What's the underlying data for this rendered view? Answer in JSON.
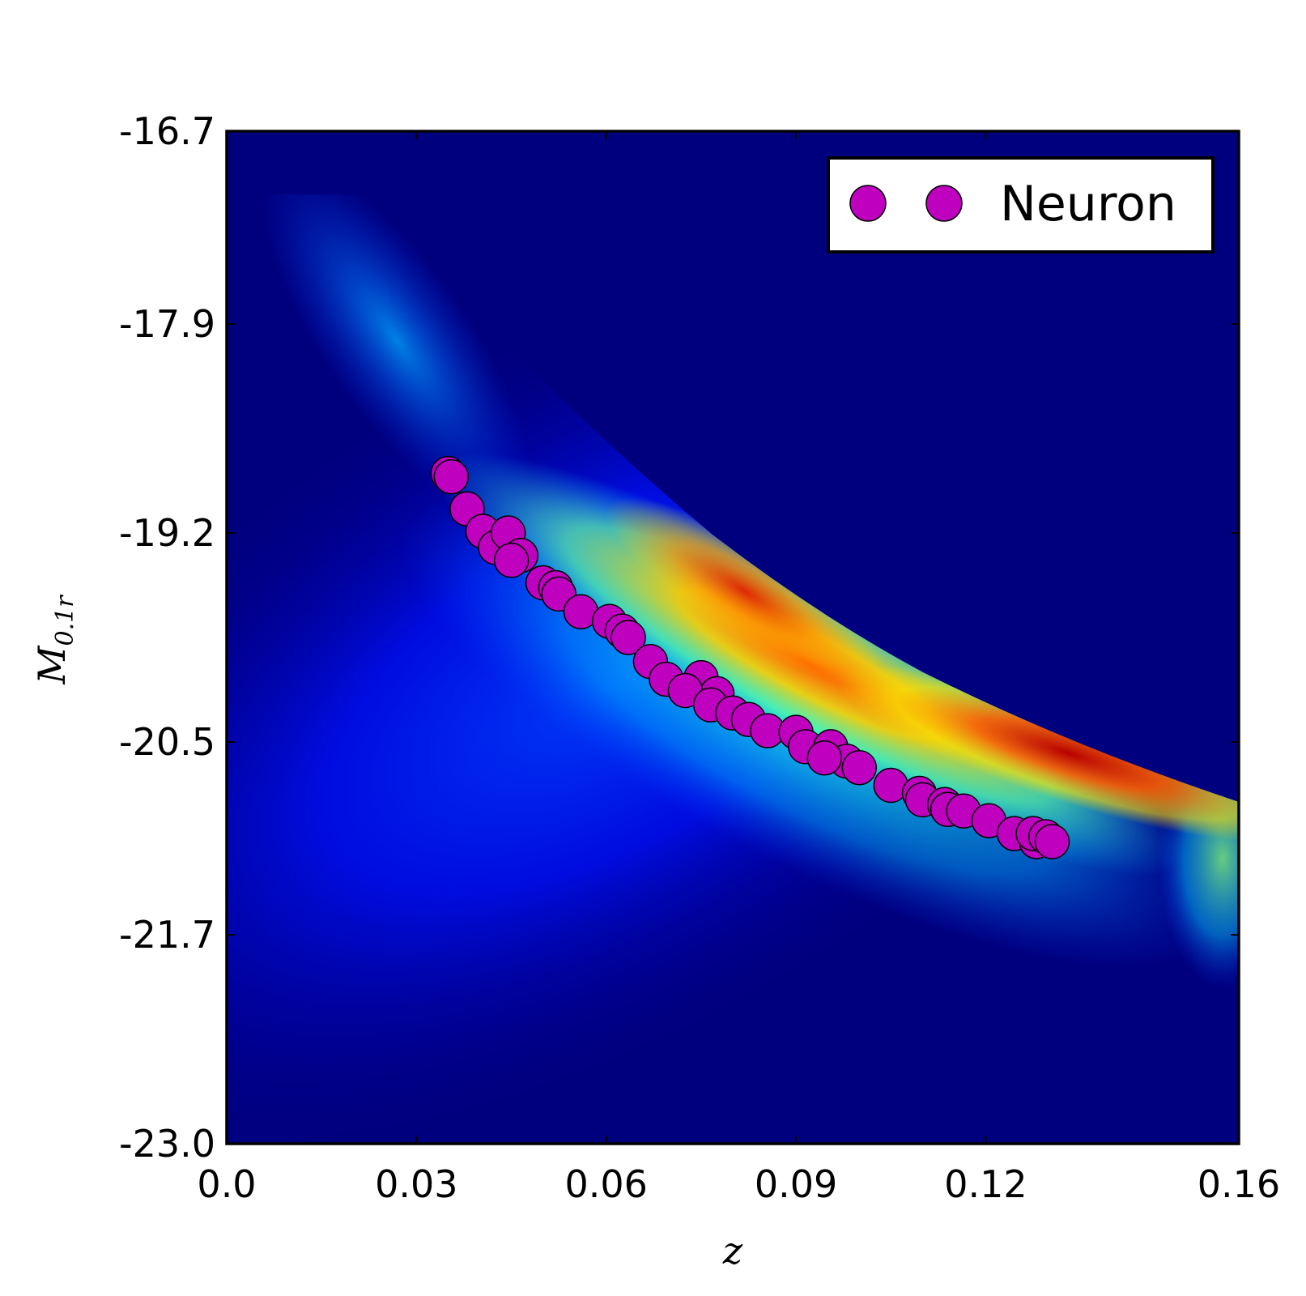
{
  "chart_data": {
    "type": "scatter",
    "title": "",
    "xlabel": "z",
    "ylabel_main": "M",
    "ylabel_sub": "0.1r",
    "xlim": [
      0.0,
      0.16
    ],
    "ylim": [
      -23.0,
      -16.7
    ],
    "y_inverted": true,
    "xticks": [
      "0.0",
      "0.03",
      "0.06",
      "0.09",
      "0.12",
      "0.16"
    ],
    "xtick_values": [
      0.0,
      0.03,
      0.06,
      0.09,
      0.12,
      0.16
    ],
    "yticks": [
      "-16.7",
      "-17.9",
      "-19.2",
      "-20.5",
      "-21.7",
      "-23.0"
    ],
    "ytick_values": [
      -16.7,
      -17.9,
      -19.2,
      -20.5,
      -21.7,
      -23.0
    ],
    "grid": false,
    "legend": {
      "position": "top-right",
      "label": "Neuron"
    },
    "background": {
      "kind": "2D density histogram",
      "colormap": "jet",
      "base_color": "#00007f"
    },
    "series": [
      {
        "name": "Neuron",
        "color": "#bf00bf",
        "x": [
          0.035,
          0.0355,
          0.038,
          0.0405,
          0.0425,
          0.0445,
          0.0465,
          0.045,
          0.05,
          0.052,
          0.0525,
          0.056,
          0.0605,
          0.0625,
          0.0635,
          0.067,
          0.0695,
          0.075,
          0.0775,
          0.0725,
          0.0765,
          0.08,
          0.0825,
          0.0855,
          0.09,
          0.0915,
          0.0955,
          0.098,
          0.0945,
          0.1,
          0.105,
          0.1095,
          0.11,
          0.1135,
          0.114,
          0.1165,
          0.1205,
          0.1245,
          0.128,
          0.1275,
          0.1295,
          0.1305
        ],
        "y": [
          -18.83,
          -18.85,
          -19.05,
          -19.19,
          -19.29,
          -19.2,
          -19.34,
          -19.37,
          -19.51,
          -19.54,
          -19.58,
          -19.69,
          -19.75,
          -19.81,
          -19.85,
          -20.0,
          -20.11,
          -20.1,
          -20.2,
          -20.18,
          -20.27,
          -20.32,
          -20.36,
          -20.43,
          -20.44,
          -20.53,
          -20.53,
          -20.62,
          -20.6,
          -20.66,
          -20.77,
          -20.82,
          -20.86,
          -20.89,
          -20.92,
          -20.93,
          -20.99,
          -21.07,
          -21.12,
          -21.07,
          -21.09,
          -21.12
        ]
      }
    ]
  }
}
